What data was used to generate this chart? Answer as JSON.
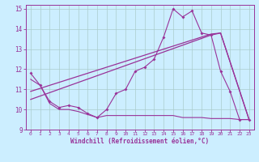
{
  "bg_color": "#cceeff",
  "grid_color": "#aacccc",
  "line_color": "#993399",
  "xlabel": "Windchill (Refroidissement éolien,°C)",
  "xlim": [
    -0.5,
    23.5
  ],
  "ylim": [
    9,
    15.2
  ],
  "yticks": [
    9,
    10,
    11,
    12,
    13,
    14,
    15
  ],
  "xticks": [
    0,
    1,
    2,
    3,
    4,
    5,
    6,
    7,
    8,
    9,
    10,
    11,
    12,
    13,
    14,
    15,
    16,
    17,
    18,
    19,
    20,
    21,
    22,
    23
  ],
  "line1_x": [
    0,
    1,
    2,
    3,
    4,
    5,
    6,
    7,
    8,
    9,
    10,
    11,
    12,
    13,
    14,
    15,
    16,
    17,
    18,
    19,
    20,
    21,
    22,
    23
  ],
  "line1_y": [
    11.8,
    11.2,
    10.4,
    10.1,
    10.2,
    10.1,
    9.8,
    9.6,
    10.0,
    10.8,
    11.0,
    11.9,
    12.1,
    12.5,
    13.6,
    15.0,
    14.6,
    14.9,
    13.8,
    13.7,
    11.9,
    10.9,
    9.5,
    9.5
  ],
  "line2_x": [
    0,
    19,
    20,
    23
  ],
  "line2_y": [
    10.5,
    13.7,
    13.8,
    9.5
  ],
  "line3_x": [
    0,
    19,
    20,
    23
  ],
  "line3_y": [
    10.9,
    13.75,
    13.8,
    9.5
  ],
  "line4_x": [
    0,
    1,
    2,
    3,
    4,
    5,
    6,
    7,
    8,
    9,
    10,
    11,
    12,
    13,
    14,
    15,
    16,
    17,
    18,
    19,
    20,
    21,
    22,
    23
  ],
  "line4_y": [
    11.5,
    11.2,
    10.3,
    10.0,
    10.0,
    9.9,
    9.75,
    9.6,
    9.7,
    9.7,
    9.7,
    9.7,
    9.7,
    9.7,
    9.7,
    9.7,
    9.6,
    9.6,
    9.6,
    9.55,
    9.55,
    9.55,
    9.5,
    9.5
  ]
}
